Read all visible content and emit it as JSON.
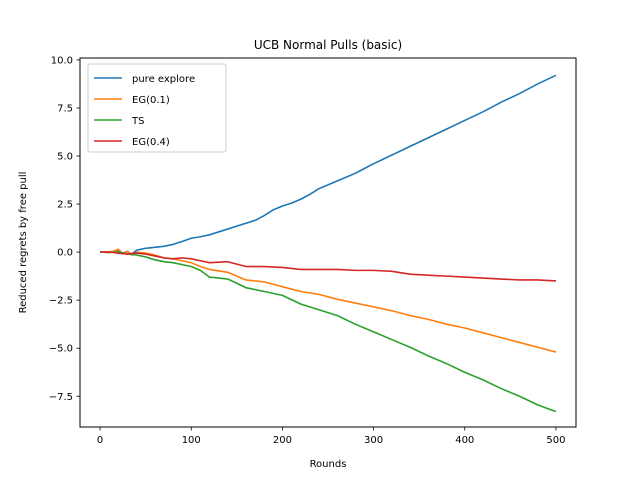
{
  "chart_data": {
    "type": "line",
    "title": "UCB Normal Pulls (basic)",
    "xlabel": "Rounds",
    "ylabel": "Reduced regrets by free pull",
    "xlim": [
      -22,
      522
    ],
    "ylim": [
      -9.1,
      10.1
    ],
    "xticks": [
      0,
      100,
      200,
      300,
      400,
      500
    ],
    "yticks": [
      -7.5,
      -5.0,
      -2.5,
      0.0,
      2.5,
      5.0,
      7.5,
      10.0
    ],
    "xtick_labels": [
      "0",
      "100",
      "200",
      "300",
      "400",
      "500"
    ],
    "ytick_labels": [
      "−7.5",
      "−5.0",
      "−2.5",
      "0.0",
      "2.5",
      "5.0",
      "7.5",
      "10.0"
    ],
    "grid": false,
    "legend_position": "upper left",
    "series": [
      {
        "name": "pure explore",
        "color": "#1f77b4",
        "x": [
          0,
          10,
          20,
          25,
          30,
          35,
          40,
          50,
          60,
          70,
          80,
          90,
          100,
          110,
          120,
          130,
          140,
          150,
          160,
          170,
          180,
          190,
          200,
          210,
          220,
          230,
          240,
          250,
          260,
          270,
          280,
          290,
          300,
          320,
          340,
          360,
          380,
          400,
          420,
          440,
          460,
          480,
          500
        ],
        "y": [
          0.0,
          -0.02,
          0.05,
          -0.05,
          0.02,
          -0.1,
          0.1,
          0.2,
          0.25,
          0.3,
          0.4,
          0.55,
          0.72,
          0.8,
          0.9,
          1.05,
          1.2,
          1.35,
          1.5,
          1.65,
          1.9,
          2.2,
          2.4,
          2.55,
          2.75,
          3.0,
          3.3,
          3.5,
          3.7,
          3.9,
          4.1,
          4.35,
          4.6,
          5.05,
          5.5,
          5.95,
          6.4,
          6.85,
          7.3,
          7.8,
          8.25,
          8.75,
          9.2
        ]
      },
      {
        "name": "EG(0.1)",
        "color": "#ff7f0e",
        "x": [
          0,
          10,
          15,
          20,
          25,
          30,
          35,
          40,
          50,
          60,
          70,
          80,
          90,
          100,
          110,
          120,
          140,
          160,
          180,
          200,
          220,
          240,
          260,
          280,
          300,
          320,
          340,
          360,
          380,
          400,
          420,
          440,
          460,
          480,
          500
        ],
        "y": [
          0.0,
          0.02,
          0.05,
          0.15,
          -0.1,
          0.05,
          -0.15,
          0.0,
          -0.05,
          -0.15,
          -0.3,
          -0.35,
          -0.45,
          -0.55,
          -0.75,
          -0.9,
          -1.05,
          -1.45,
          -1.55,
          -1.8,
          -2.05,
          -2.2,
          -2.45,
          -2.65,
          -2.85,
          -3.05,
          -3.3,
          -3.5,
          -3.75,
          -3.95,
          -4.2,
          -4.45,
          -4.7,
          -4.95,
          -5.2
        ]
      },
      {
        "name": "TS",
        "color": "#2ca02c",
        "x": [
          0,
          10,
          20,
          30,
          40,
          50,
          60,
          70,
          80,
          90,
          100,
          110,
          120,
          140,
          160,
          180,
          200,
          220,
          240,
          260,
          280,
          300,
          320,
          340,
          360,
          380,
          400,
          420,
          440,
          460,
          480,
          500
        ],
        "y": [
          0.0,
          -0.02,
          0.02,
          -0.1,
          -0.15,
          -0.25,
          -0.4,
          -0.5,
          -0.55,
          -0.65,
          -0.75,
          -0.95,
          -1.3,
          -1.4,
          -1.85,
          -2.05,
          -2.25,
          -2.7,
          -3.0,
          -3.3,
          -3.75,
          -4.15,
          -4.55,
          -4.95,
          -5.4,
          -5.8,
          -6.25,
          -6.65,
          -7.1,
          -7.5,
          -7.95,
          -8.3
        ]
      },
      {
        "name": "EG(0.4)",
        "color": "#d62728",
        "x": [
          0,
          10,
          20,
          30,
          40,
          50,
          60,
          70,
          80,
          90,
          100,
          110,
          120,
          140,
          160,
          180,
          200,
          220,
          240,
          260,
          280,
          300,
          320,
          340,
          360,
          380,
          400,
          420,
          440,
          460,
          480,
          500
        ],
        "y": [
          0.0,
          0.0,
          -0.05,
          -0.1,
          -0.05,
          -0.1,
          -0.2,
          -0.3,
          -0.35,
          -0.3,
          -0.35,
          -0.45,
          -0.55,
          -0.5,
          -0.75,
          -0.75,
          -0.8,
          -0.9,
          -0.9,
          -0.9,
          -0.95,
          -0.95,
          -1.0,
          -1.15,
          -1.2,
          -1.25,
          -1.3,
          -1.35,
          -1.4,
          -1.45,
          -1.45,
          -1.5
        ]
      }
    ]
  }
}
